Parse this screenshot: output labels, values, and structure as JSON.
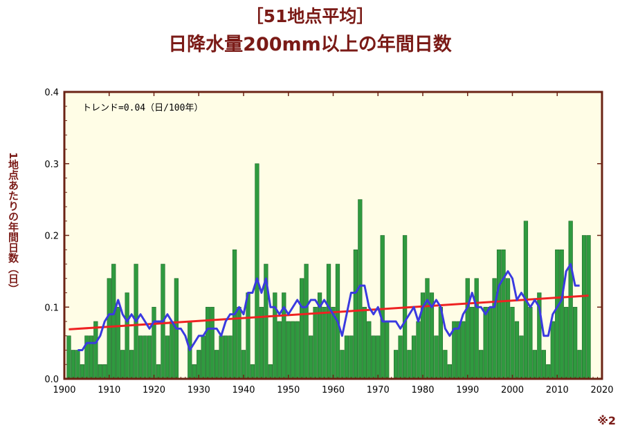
{
  "header": {
    "line1": "［51地点平均］",
    "line2": "日降水量200mm以上の年間日数"
  },
  "note": "※2",
  "chart_data": {
    "type": "bar",
    "ylabel": "1地点あたりの年間日数（日）",
    "annotation": "トレンド=0.04（日/100年）",
    "xlim": [
      1900,
      2020
    ],
    "ylim": [
      0.0,
      0.4
    ],
    "x_ticks": [
      1900,
      1910,
      1920,
      1930,
      1940,
      1950,
      1960,
      1970,
      1980,
      1990,
      2000,
      2010,
      2020
    ],
    "y_ticks": [
      0.0,
      0.1,
      0.2,
      0.3,
      0.4
    ],
    "y_tick_labels": [
      "0.0",
      "0.1",
      "0.2",
      "0.3",
      "0.4"
    ],
    "colors": {
      "plot_background": "#fffde6",
      "frame": "#6b2314",
      "bars": "#2f9a3f",
      "bar_edge": "#1f6a2a",
      "moving_average": "#3a3ae0",
      "trend": "#ee2222",
      "title": "#7a1a16"
    },
    "series": [
      {
        "type": "bar",
        "years": [
          1901,
          1902,
          1903,
          1904,
          1905,
          1906,
          1907,
          1908,
          1909,
          1910,
          1911,
          1912,
          1913,
          1914,
          1915,
          1916,
          1917,
          1918,
          1919,
          1920,
          1921,
          1922,
          1923,
          1924,
          1925,
          1926,
          1927,
          1928,
          1929,
          1930,
          1931,
          1932,
          1933,
          1934,
          1935,
          1936,
          1937,
          1938,
          1939,
          1940,
          1941,
          1942,
          1943,
          1944,
          1945,
          1946,
          1947,
          1948,
          1949,
          1950,
          1951,
          1952,
          1953,
          1954,
          1955,
          1956,
          1957,
          1958,
          1959,
          1960,
          1961,
          1962,
          1963,
          1964,
          1965,
          1966,
          1967,
          1968,
          1969,
          1970,
          1971,
          1972,
          1973,
          1974,
          1975,
          1976,
          1977,
          1978,
          1979,
          1980,
          1981,
          1982,
          1983,
          1984,
          1985,
          1986,
          1987,
          1988,
          1989,
          1990,
          1991,
          1992,
          1993,
          1994,
          1995,
          1996,
          1997,
          1998,
          1999,
          2000,
          2001,
          2002,
          2003,
          2004,
          2005,
          2006,
          2007,
          2008,
          2009,
          2010,
          2011,
          2012,
          2013,
          2014,
          2015,
          2016,
          2017
        ],
        "values": [
          0.06,
          0.04,
          0.04,
          0.02,
          0.06,
          0.06,
          0.08,
          0.02,
          0.02,
          0.14,
          0.16,
          0.1,
          0.04,
          0.12,
          0.04,
          0.16,
          0.06,
          0.06,
          0.06,
          0.1,
          0.02,
          0.16,
          0.06,
          0.08,
          0.14,
          0.0,
          0.0,
          0.08,
          0.02,
          0.04,
          0.06,
          0.1,
          0.1,
          0.04,
          0.06,
          0.06,
          0.06,
          0.18,
          0.1,
          0.04,
          0.12,
          0.02,
          0.3,
          0.1,
          0.16,
          0.02,
          0.12,
          0.08,
          0.12,
          0.08,
          0.08,
          0.08,
          0.14,
          0.16,
          0.06,
          0.1,
          0.12,
          0.1,
          0.16,
          0.1,
          0.16,
          0.04,
          0.06,
          0.06,
          0.18,
          0.25,
          0.1,
          0.08,
          0.06,
          0.06,
          0.2,
          0.08,
          0.0,
          0.04,
          0.06,
          0.2,
          0.04,
          0.06,
          0.08,
          0.12,
          0.14,
          0.12,
          0.06,
          0.1,
          0.04,
          0.02,
          0.08,
          0.08,
          0.08,
          0.14,
          0.1,
          0.14,
          0.04,
          0.1,
          0.1,
          0.14,
          0.18,
          0.18,
          0.14,
          0.1,
          0.08,
          0.06,
          0.22,
          0.1,
          0.04,
          0.12,
          0.04,
          0.02,
          0.08,
          0.18,
          0.18,
          0.1,
          0.22,
          0.1,
          0.04,
          0.2,
          0.2
        ]
      },
      {
        "type": "line",
        "years": [
          1903,
          1904,
          1905,
          1906,
          1907,
          1908,
          1909,
          1910,
          1911,
          1912,
          1913,
          1914,
          1915,
          1916,
          1917,
          1918,
          1919,
          1920,
          1921,
          1922,
          1923,
          1924,
          1925,
          1926,
          1927,
          1928,
          1929,
          1930,
          1931,
          1932,
          1933,
          1934,
          1935,
          1936,
          1937,
          1938,
          1939,
          1940,
          1941,
          1942,
          1943,
          1944,
          1945,
          1946,
          1947,
          1948,
          1949,
          1950,
          1951,
          1952,
          1953,
          1954,
          1955,
          1956,
          1957,
          1958,
          1959,
          1960,
          1961,
          1962,
          1963,
          1964,
          1965,
          1966,
          1967,
          1968,
          1969,
          1970,
          1971,
          1972,
          1973,
          1974,
          1975,
          1976,
          1977,
          1978,
          1979,
          1980,
          1981,
          1982,
          1983,
          1984,
          1985,
          1986,
          1987,
          1988,
          1989,
          1990,
          1991,
          1992,
          1993,
          1994,
          1995,
          1996,
          1997,
          1998,
          1999,
          2000,
          2001,
          2002,
          2003,
          2004,
          2005,
          2006,
          2007,
          2008,
          2009,
          2010,
          2011,
          2012,
          2013,
          2014,
          2015
        ],
        "values": [
          0.04,
          0.04,
          0.05,
          0.05,
          0.05,
          0.06,
          0.08,
          0.09,
          0.09,
          0.11,
          0.09,
          0.08,
          0.09,
          0.08,
          0.09,
          0.08,
          0.07,
          0.08,
          0.08,
          0.08,
          0.09,
          0.08,
          0.07,
          0.07,
          0.06,
          0.04,
          0.05,
          0.06,
          0.06,
          0.07,
          0.07,
          0.07,
          0.06,
          0.08,
          0.09,
          0.09,
          0.1,
          0.09,
          0.12,
          0.12,
          0.14,
          0.12,
          0.14,
          0.1,
          0.1,
          0.09,
          0.1,
          0.09,
          0.1,
          0.11,
          0.1,
          0.1,
          0.11,
          0.11,
          0.1,
          0.11,
          0.1,
          0.09,
          0.08,
          0.06,
          0.09,
          0.12,
          0.12,
          0.13,
          0.13,
          0.1,
          0.09,
          0.1,
          0.08,
          0.08,
          0.08,
          0.08,
          0.07,
          0.08,
          0.09,
          0.1,
          0.08,
          0.1,
          0.11,
          0.1,
          0.11,
          0.1,
          0.07,
          0.06,
          0.07,
          0.07,
          0.09,
          0.1,
          0.12,
          0.1,
          0.1,
          0.09,
          0.1,
          0.1,
          0.13,
          0.14,
          0.15,
          0.14,
          0.11,
          0.12,
          0.11,
          0.1,
          0.11,
          0.1,
          0.06,
          0.06,
          0.09,
          0.1,
          0.11,
          0.15,
          0.16,
          0.13,
          0.13
        ]
      },
      {
        "type": "trend",
        "x": [
          1901,
          2017
        ],
        "values": [
          0.069,
          0.116
        ]
      }
    ]
  }
}
